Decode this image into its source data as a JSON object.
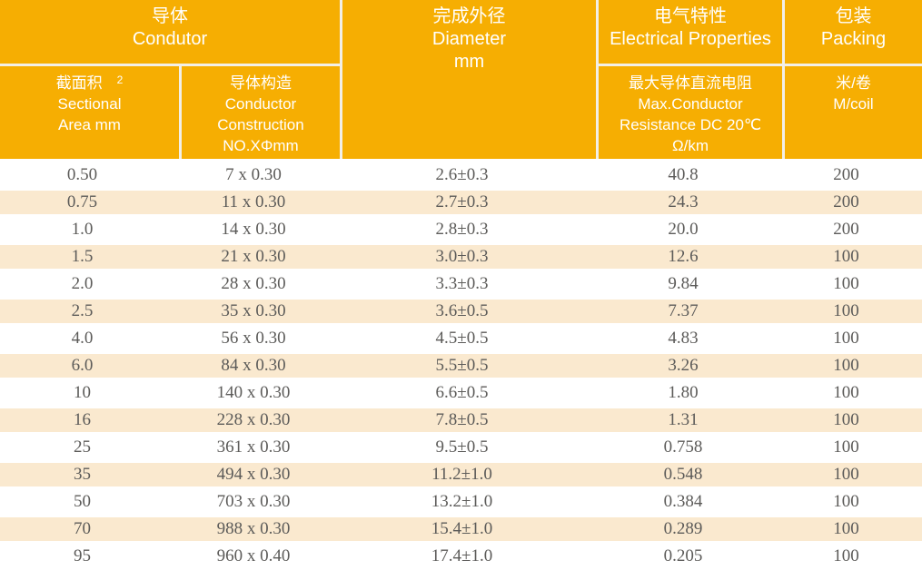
{
  "colors": {
    "header_orange": "#f6ae02",
    "stripe_cream": "#fae9cf",
    "data_text": "#5c5b59",
    "header_text": "#ffffff"
  },
  "header": {
    "conductor_group": {
      "zh": "导体",
      "en": "Condutor"
    },
    "sectional_area": {
      "zh": "截面积",
      "sup": "2",
      "en1": "Sectional",
      "en2": "Area mm"
    },
    "construction": {
      "zh": "导体构造",
      "en1": "Conductor",
      "en2": "Construction",
      "en3": "NO.XΦmm"
    },
    "diameter": {
      "zh": "完成外径",
      "en1": "Diameter",
      "en2": "mm"
    },
    "electrical_group": {
      "zh": "电气特性",
      "en": "Electrical Properties"
    },
    "resistance": {
      "zh": "最大导体直流电阻",
      "en1": "Max.Conductor",
      "en2": "Resistance DC 20℃",
      "en3": "Ω/km"
    },
    "packing_group": {
      "zh": "包装",
      "en": "Packing"
    },
    "m_coil": {
      "zh": "米/卷",
      "en": "M/coil"
    }
  },
  "column_keys": [
    "sectional_area",
    "construction",
    "diameter",
    "resistance",
    "m_per_coil"
  ],
  "rows": [
    {
      "sectional_area": "0.50",
      "construction": "7 x 0.30",
      "diameter": "2.6±0.3",
      "resistance": "40.8",
      "m_per_coil": "200"
    },
    {
      "sectional_area": "0.75",
      "construction": "11 x 0.30",
      "diameter": "2.7±0.3",
      "resistance": "24.3",
      "m_per_coil": "200"
    },
    {
      "sectional_area": "1.0",
      "construction": "14 x 0.30",
      "diameter": "2.8±0.3",
      "resistance": "20.0",
      "m_per_coil": "200"
    },
    {
      "sectional_area": "1.5",
      "construction": "21 x 0.30",
      "diameter": "3.0±0.3",
      "resistance": "12.6",
      "m_per_coil": "100"
    },
    {
      "sectional_area": "2.0",
      "construction": "28 x 0.30",
      "diameter": "3.3±0.3",
      "resistance": "9.84",
      "m_per_coil": "100"
    },
    {
      "sectional_area": "2.5",
      "construction": "35 x 0.30",
      "diameter": "3.6±0.5",
      "resistance": "7.37",
      "m_per_coil": "100"
    },
    {
      "sectional_area": "4.0",
      "construction": "56 x 0.30",
      "diameter": "4.5±0.5",
      "resistance": "4.83",
      "m_per_coil": "100"
    },
    {
      "sectional_area": "6.0",
      "construction": "84 x 0.30",
      "diameter": "5.5±0.5",
      "resistance": "3.26",
      "m_per_coil": "100"
    },
    {
      "sectional_area": "10",
      "construction": "140 x 0.30",
      "diameter": "6.6±0.5",
      "resistance": "1.80",
      "m_per_coil": "100"
    },
    {
      "sectional_area": "16",
      "construction": "228 x 0.30",
      "diameter": "7.8±0.5",
      "resistance": "1.31",
      "m_per_coil": "100"
    },
    {
      "sectional_area": "25",
      "construction": "361 x 0.30",
      "diameter": "9.5±0.5",
      "resistance": "0.758",
      "m_per_coil": "100"
    },
    {
      "sectional_area": "35",
      "construction": "494 x 0.30",
      "diameter": "11.2±1.0",
      "resistance": "0.548",
      "m_per_coil": "100"
    },
    {
      "sectional_area": "50",
      "construction": "703 x 0.30",
      "diameter": "13.2±1.0",
      "resistance": "0.384",
      "m_per_coil": "100"
    },
    {
      "sectional_area": "70",
      "construction": "988 x 0.30",
      "diameter": "15.4±1.0",
      "resistance": "0.289",
      "m_per_coil": "100"
    },
    {
      "sectional_area": "95",
      "construction": "960 x 0.40",
      "diameter": "17.4±1.0",
      "resistance": "0.205",
      "m_per_coil": "100"
    }
  ]
}
